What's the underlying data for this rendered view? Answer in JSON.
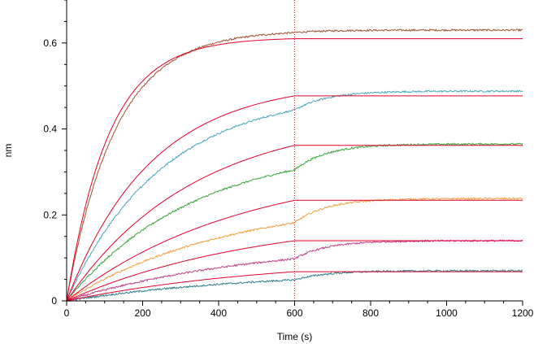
{
  "chart_data": {
    "type": "line",
    "title": "",
    "xlabel": "Time (s)",
    "ylabel": "nm",
    "xlim": [
      0,
      1200
    ],
    "ylim": [
      0,
      0.7
    ],
    "xticks": [
      0,
      200,
      400,
      600,
      800,
      1000,
      1200
    ],
    "xtick_labels": [
      "0",
      "200",
      "400",
      "600",
      "800",
      "1000",
      "1200"
    ],
    "yticks": [
      0,
      0.2,
      0.4,
      0.6
    ],
    "ytick_labels": [
      "0",
      "0.2",
      "0.4",
      "0.6"
    ],
    "grid": false,
    "legend": "none",
    "reference_line": {
      "x": 600,
      "style": "dotted",
      "color": "#c0392b"
    },
    "fit_color": "#e0002a",
    "series": [
      {
        "color": "#a0522d",
        "plateau": 0.63,
        "kobs": 0.0078,
        "fit_plateau": 0.61,
        "fit_kobs": 0.009
      },
      {
        "color": "#4aa6bd",
        "plateau": 0.488,
        "kobs": 0.004,
        "fit_plateau": 0.477,
        "fit_kobs": 0.0045
      },
      {
        "color": "#3aa63a",
        "plateau": 0.365,
        "kobs": 0.003,
        "fit_plateau": 0.362,
        "fit_kobs": 0.003
      },
      {
        "color": "#f0a040",
        "plateau": 0.238,
        "kobs": 0.0024,
        "fit_plateau": 0.234,
        "fit_kobs": 0.0022
      },
      {
        "color": "#c0408a",
        "plateau": 0.14,
        "kobs": 0.002,
        "fit_plateau": 0.14,
        "fit_kobs": 0.002
      },
      {
        "color": "#2e7d8c",
        "plateau": 0.07,
        "kobs": 0.002,
        "fit_plateau": 0.068,
        "fit_kobs": 0.0018
      }
    ],
    "association_end_time": 600
  }
}
